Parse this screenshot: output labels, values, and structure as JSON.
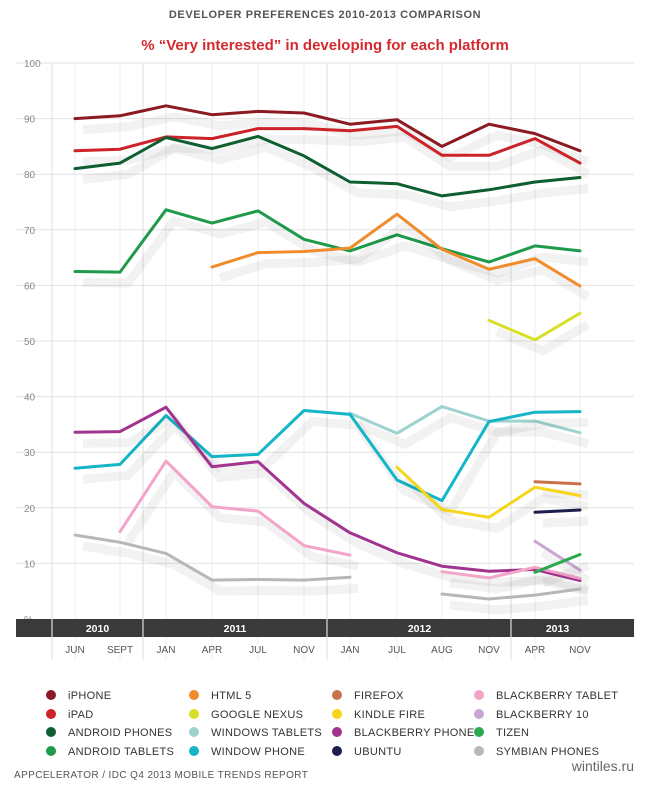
{
  "title": "DEVELOPER PREFERENCES 2010-2013 COMPARISON",
  "subtitle": "% “Very interested” in developing for each platform",
  "source": "APPCELERATOR / IDC Q4 2013 MOBILE TRENDS REPORT",
  "watermark": "wintiles.ru",
  "chart_data": {
    "type": "line",
    "title": "DEVELOPER PREFERENCES 2010-2013 COMPARISON",
    "subtitle": "% “Very interested” in developing for each platform",
    "ylabel": "%",
    "ylim": [
      0,
      100
    ],
    "yticks": [
      10,
      20,
      30,
      40,
      50,
      60,
      70,
      80,
      90,
      100
    ],
    "grid": true,
    "legend_position": "bottom",
    "years": [
      {
        "label": "2010",
        "from": 0,
        "to": 1
      },
      {
        "label": "2011",
        "from": 2,
        "to": 5
      },
      {
        "label": "2012",
        "from": 6,
        "to": 9
      },
      {
        "label": "2013",
        "from": 10,
        "to": 11
      }
    ],
    "categories": [
      "JUN",
      "SEPT",
      "JAN",
      "APR",
      "JUL",
      "NOV",
      "JAN",
      "JUL",
      "AUG",
      "NOV",
      "APR",
      "NOV"
    ],
    "series": [
      {
        "name": "iPHONE",
        "color": "#8b1a22",
        "values": [
          90,
          90.5,
          92.3,
          90.7,
          91.3,
          91,
          89,
          89.8,
          85,
          89,
          87.3,
          84.2
        ]
      },
      {
        "name": "iPAD",
        "color": "#cc2229",
        "values": [
          84.2,
          84.5,
          86.7,
          86.4,
          88.2,
          88.2,
          87.8,
          88.6,
          83.4,
          83.4,
          86.4,
          82
        ]
      },
      {
        "name": "ANDROID PHONES",
        "color": "#0d5e30",
        "values": [
          81,
          82,
          86.6,
          84.6,
          86.8,
          83.3,
          78.6,
          78.3,
          76.1,
          77.2,
          78.6,
          79.4
        ]
      },
      {
        "name": "ANDROID TABLETS",
        "color": "#1f9a4a",
        "values": [
          62.5,
          62.4,
          73.6,
          71.2,
          73.4,
          68.3,
          66.2,
          69.1,
          66.6,
          64.2,
          67.1,
          66.2
        ]
      },
      {
        "name": "HTML 5",
        "color": "#f08c2c",
        "values": [
          null,
          null,
          null,
          63.3,
          65.9,
          66.1,
          66.7,
          72.8,
          66.5,
          62.9,
          64.8,
          59.9
        ]
      },
      {
        "name": "GOOGLE NEXUS",
        "color": "#d6e028",
        "values": [
          null,
          null,
          null,
          null,
          null,
          null,
          null,
          null,
          null,
          53.7,
          50.2,
          55
        ]
      },
      {
        "name": "WINDOWS TABLETS",
        "color": "#9dd3cf",
        "values": [
          null,
          null,
          null,
          null,
          null,
          null,
          37,
          33.4,
          38.2,
          35.6,
          35.6,
          33.5
        ]
      },
      {
        "name": "WINDOW PHONE",
        "color": "#14b5c6",
        "values": [
          27.1,
          27.8,
          36.6,
          29.2,
          29.6,
          37.5,
          36.8,
          25,
          21.3,
          35.5,
          37.2,
          37.3
        ]
      },
      {
        "name": "FIREFOX",
        "color": "#c8724a",
        "values": [
          null,
          null,
          null,
          null,
          null,
          null,
          null,
          null,
          null,
          null,
          24.7,
          24.3
        ]
      },
      {
        "name": "KINDLE FIRE",
        "color": "#f5d61a",
        "values": [
          null,
          null,
          null,
          null,
          null,
          null,
          null,
          27.3,
          19.7,
          18.3,
          23.7,
          22.2
        ]
      },
      {
        "name": "BLACKBERRY PHONE",
        "color": "#a2338f",
        "values": [
          33.6,
          33.7,
          38.1,
          27.4,
          28.3,
          20.8,
          15.5,
          11.9,
          9.5,
          8.6,
          8.9,
          6.9
        ]
      },
      {
        "name": "UBUNTU",
        "color": "#1c1e4d",
        "values": [
          null,
          null,
          null,
          null,
          null,
          null,
          null,
          null,
          null,
          null,
          19.2,
          19.6
        ]
      },
      {
        "name": "BLACKBERRY TABLET",
        "color": "#f2a5c8",
        "values": [
          null,
          15.7,
          28.4,
          20.2,
          19.4,
          13.2,
          11.5,
          null,
          8.5,
          7.4,
          9.3,
          7.3
        ]
      },
      {
        "name": "BLACKBERRY 10",
        "color": "#c9a6d3",
        "values": [
          null,
          null,
          null,
          null,
          null,
          null,
          null,
          null,
          null,
          null,
          14,
          8.8
        ]
      },
      {
        "name": "TIZEN",
        "color": "#2aa94f",
        "values": [
          null,
          null,
          null,
          null,
          null,
          null,
          null,
          null,
          null,
          null,
          8.4,
          11.6
        ]
      },
      {
        "name": "SYMBIAN PHONES",
        "color": "#b7b7b7",
        "values": [
          15.1,
          13.8,
          11.8,
          7,
          7.1,
          7,
          7.5,
          null,
          4.5,
          3.6,
          4.3,
          5.4
        ]
      }
    ]
  }
}
